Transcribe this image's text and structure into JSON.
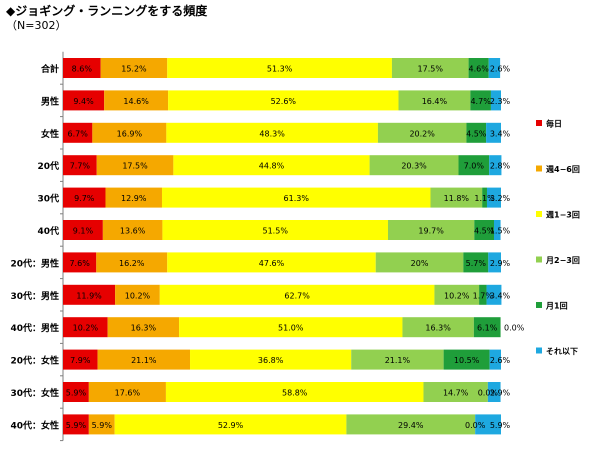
{
  "title": "◆ジョギング・ランニングをする頻度",
  "subtitle": "（N=302）",
  "chart_data": {
    "type": "bar",
    "stacked": true,
    "orientation": "horizontal",
    "xlim": [
      0,
      100
    ],
    "grid": false,
    "legend_position": "right",
    "categories": [
      "合計",
      "男性",
      "女性",
      "20代",
      "30代",
      "40代",
      "20代：男性",
      "30代：男性",
      "40代：男性",
      "20代：女性",
      "30代：女性",
      "40代：女性"
    ],
    "series": [
      {
        "name": "毎日",
        "color": "#e60000",
        "values": [
          8.6,
          9.4,
          6.7,
          7.7,
          9.7,
          9.1,
          7.6,
          11.9,
          10.2,
          7.9,
          5.9,
          5.9
        ],
        "labels": [
          "8.6%",
          "9.4%",
          "6.7%",
          "7.7%",
          "9.7%",
          "9.1%",
          "7.6%",
          "11.9%",
          "10.2%",
          "7.9%",
          "5.9%",
          "5.9%"
        ]
      },
      {
        "name": "週4−6回",
        "color": "#f5a800",
        "values": [
          15.2,
          14.6,
          16.9,
          17.5,
          12.9,
          13.6,
          16.2,
          10.2,
          16.3,
          21.1,
          17.6,
          5.9
        ],
        "labels": [
          "15.2%",
          "14.6%",
          "16.9%",
          "17.5%",
          "12.9%",
          "13.6%",
          "16.2%",
          "10.2%",
          "16.3%",
          "21.1%",
          "17.6%",
          "5.9%"
        ]
      },
      {
        "name": "週1−3回",
        "color": "#ffff00",
        "values": [
          51.3,
          52.6,
          48.3,
          44.8,
          61.3,
          51.5,
          47.6,
          62.7,
          51.0,
          36.8,
          58.8,
          52.9
        ],
        "labels": [
          "51.3%",
          "52.6%",
          "48.3%",
          "44.8%",
          "61.3%",
          "51.5%",
          "47.6%",
          "62.7%",
          "51.0%",
          "36.8%",
          "58.8%",
          "52.9%"
        ]
      },
      {
        "name": "月2−3回",
        "color": "#92d050",
        "values": [
          17.5,
          16.4,
          20.2,
          20.3,
          11.8,
          19.7,
          20.0,
          10.2,
          16.3,
          21.1,
          14.7,
          29.4
        ],
        "labels": [
          "17.5%",
          "16.4%",
          "20.2%",
          "20.3%",
          "11.8%",
          "19.7%",
          "20%",
          "10.2%",
          "16.3%",
          "21.1%",
          "14.7%",
          "29.4%"
        ]
      },
      {
        "name": "月1回",
        "color": "#1f9e3a",
        "values": [
          4.6,
          4.7,
          4.5,
          7.0,
          1.1,
          4.5,
          5.7,
          1.7,
          6.1,
          10.5,
          0.0,
          0.0
        ],
        "labels": [
          "4.6%",
          "4.7%",
          "4.5%",
          "7.0%",
          "1.1%",
          "4.5%",
          "5.7%",
          "1.7%",
          "6.1%",
          "10.5%",
          "0.0%",
          "0.0%"
        ]
      },
      {
        "name": "それ以下",
        "color": "#1ea8e0",
        "values": [
          2.6,
          2.3,
          3.4,
          2.8,
          3.2,
          1.5,
          2.9,
          3.4,
          0.0,
          2.6,
          2.9,
          5.9
        ],
        "labels": [
          "2.6%",
          "2.3%",
          "3.4%",
          "2.8%",
          "3.2%",
          "1.5%",
          "2.9%",
          "3.4%",
          "0.0%",
          "2.6%",
          "2.9%",
          "5.9%"
        ]
      }
    ]
  }
}
